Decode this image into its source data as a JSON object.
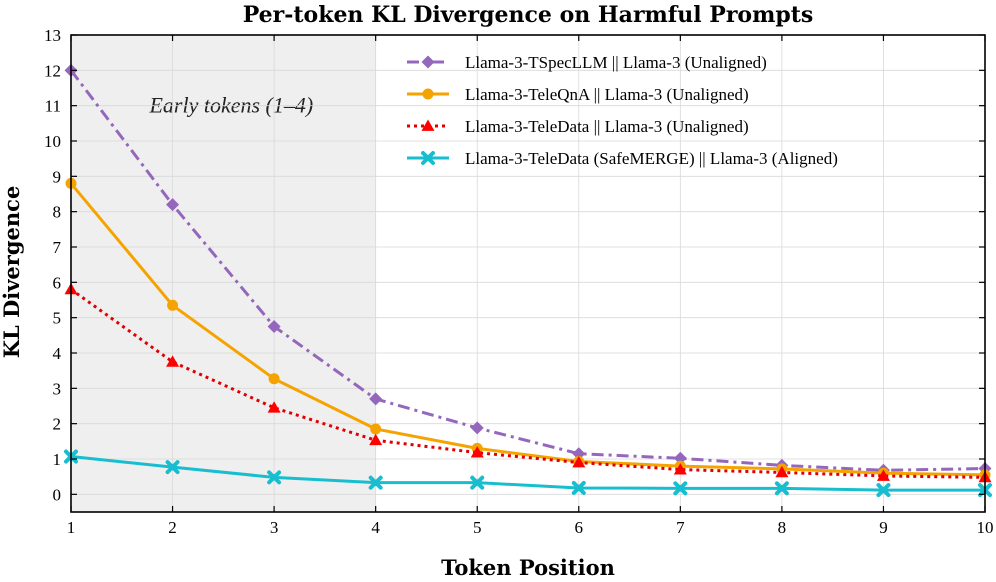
{
  "chart_data": {
    "type": "line",
    "title": "Per-token KL Divergence on Harmful Prompts",
    "xlabel": "Token Position",
    "ylabel": "KL Divergence",
    "x": [
      1,
      2,
      3,
      4,
      5,
      6,
      7,
      8,
      9,
      10
    ],
    "xlim": [
      1,
      10
    ],
    "ylim": [
      -0.5,
      13
    ],
    "xticks": [
      "1",
      "2",
      "3",
      "4",
      "5",
      "6",
      "7",
      "8",
      "9",
      "10"
    ],
    "yticks": [
      "0",
      "1",
      "2",
      "3",
      "4",
      "5",
      "6",
      "7",
      "8",
      "9",
      "10",
      "11",
      "12",
      "13"
    ],
    "grid": true,
    "legend_position": "top-right",
    "shaded_region": {
      "x_start": 1,
      "x_end": 4,
      "label": "Early tokens (1–4)",
      "color": "#efefef"
    },
    "series": [
      {
        "name": "Llama-3-TSpecLLM || Llama-3 (Unaligned)",
        "color": "#9467bd",
        "line_style": "dashdot",
        "marker": "diamond",
        "values": [
          12.0,
          8.2,
          4.75,
          2.7,
          1.88,
          1.15,
          1.02,
          0.82,
          0.68,
          0.73
        ]
      },
      {
        "name": "Llama-3-TeleQnA || Llama-3 (Unaligned)",
        "color": "#f5a300",
        "line_style": "solid",
        "marker": "circle",
        "values": [
          8.8,
          5.35,
          3.27,
          1.85,
          1.3,
          0.93,
          0.8,
          0.72,
          0.6,
          0.55
        ]
      },
      {
        "name": "Llama-3-TeleData || Llama-3 (Unaligned)",
        "color": "#e00000",
        "marker_color": "#ff0000",
        "line_style": "dotted",
        "marker": "triangle",
        "values": [
          5.8,
          3.75,
          2.45,
          1.53,
          1.18,
          0.9,
          0.7,
          0.62,
          0.52,
          0.48
        ]
      },
      {
        "name": "Llama-3-TeleData (SafeMERGE) || Llama-3 (Aligned)",
        "color": "#17becf",
        "line_style": "solid",
        "marker": "x-filled",
        "values": [
          1.07,
          0.77,
          0.48,
          0.33,
          0.33,
          0.18,
          0.17,
          0.17,
          0.12,
          0.12
        ]
      }
    ]
  }
}
